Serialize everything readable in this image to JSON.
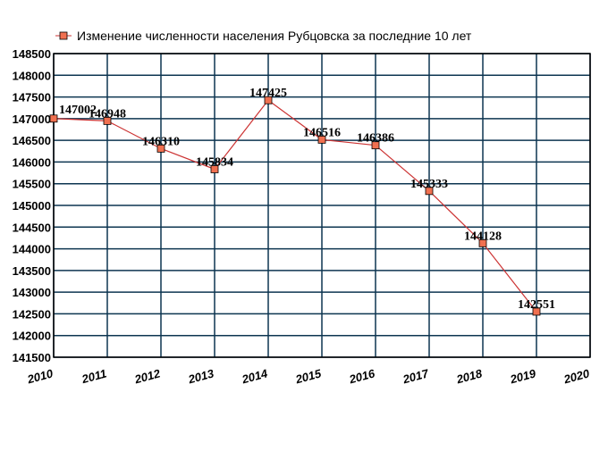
{
  "chart_data": {
    "type": "line",
    "title": "",
    "xlabel": "",
    "ylabel": "",
    "x_ticks": [
      "2010",
      "2011",
      "2012",
      "2013",
      "2014",
      "2015",
      "2016",
      "2017",
      "2018",
      "2019",
      "2020"
    ],
    "y_ticks": [
      "148500",
      "148000",
      "147500",
      "147000",
      "146500",
      "146000",
      "145500",
      "145000",
      "144500",
      "144000",
      "143500",
      "143000",
      "142500",
      "142000",
      "141500"
    ],
    "xlim": [
      2010,
      2020
    ],
    "ylim": [
      141500,
      148500
    ],
    "grid": true,
    "legend_position": "top",
    "series": [
      {
        "name": "Изменение численности населения Рубцовска за последние 10 лет",
        "color": "#cc3333",
        "marker_fill": "#f07050",
        "x": [
          2010,
          2011,
          2012,
          2013,
          2014,
          2015,
          2016,
          2017,
          2018,
          2019
        ],
        "values": [
          147002,
          146948,
          146310,
          145834,
          147425,
          146516,
          146386,
          145333,
          144128,
          142551
        ],
        "labels": [
          "147002",
          "146948",
          "146310",
          "145834",
          "147425",
          "146516",
          "146386",
          "145333",
          "144128",
          "142551"
        ]
      }
    ],
    "grid_color": "#0d3550",
    "axis_color": "#000000"
  }
}
